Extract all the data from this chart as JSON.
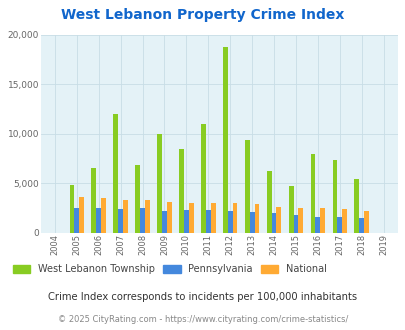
{
  "title": "West Lebanon Property Crime Index",
  "years": [
    2004,
    2005,
    2006,
    2007,
    2008,
    2009,
    2010,
    2011,
    2012,
    2013,
    2014,
    2015,
    2016,
    2017,
    2018,
    2019
  ],
  "west_lebanon": [
    0,
    4800,
    6500,
    12000,
    6800,
    10000,
    8500,
    11000,
    18800,
    9400,
    6200,
    4700,
    7900,
    7300,
    5400,
    0
  ],
  "pennsylvania": [
    0,
    2500,
    2500,
    2400,
    2500,
    2200,
    2300,
    2300,
    2200,
    2100,
    2000,
    1800,
    1600,
    1600,
    1500,
    0
  ],
  "national": [
    0,
    3600,
    3500,
    3300,
    3300,
    3100,
    3000,
    3000,
    3000,
    2900,
    2600,
    2500,
    2500,
    2400,
    2200,
    0
  ],
  "colors": {
    "west_lebanon": "#88cc22",
    "pennsylvania": "#4488dd",
    "national": "#ffaa33"
  },
  "ylim": [
    0,
    20000
  ],
  "yticks": [
    0,
    5000,
    10000,
    15000,
    20000
  ],
  "background_color": "#e4f2f7",
  "grid_color": "#c8dde6",
  "title_color": "#1166cc",
  "legend_note": "Crime Index corresponds to incidents per 100,000 inhabitants",
  "footer": "© 2025 CityRating.com - https://www.cityrating.com/crime-statistics/",
  "bar_width": 0.22
}
